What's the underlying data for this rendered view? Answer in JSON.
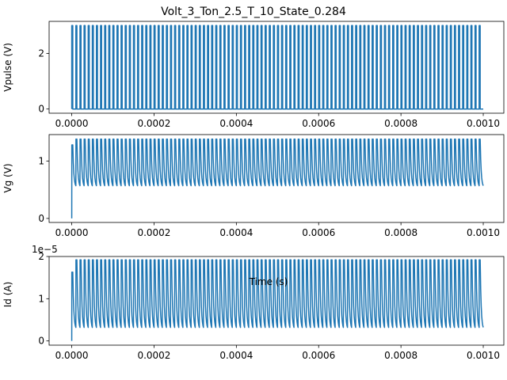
{
  "chart_data": {
    "title": "Volt_3_Ton_2.5_T_10_State_0.284",
    "type": "line",
    "color": "#1f77b4",
    "shared_x": {
      "xlabel": "Time (s)",
      "xlim": [
        -5.5e-05,
        0.00105
      ],
      "xticks": [
        0.0,
        0.0002,
        0.0004,
        0.0006,
        0.0008,
        0.001
      ],
      "xtick_labels": [
        "0.0000",
        "0.0002",
        "0.0004",
        "0.0006",
        "0.0008",
        "0.0010"
      ]
    },
    "pulse": {
      "period": 1e-05,
      "on_time": 2.5e-06,
      "count": 100
    },
    "subplots": [
      {
        "ylabel": "Vpulse (V)",
        "ylim": [
          -0.15,
          3.15
        ],
        "yticks": [
          0,
          2
        ],
        "ytick_labels": [
          "0",
          "2"
        ],
        "offset_text": "",
        "low": 0,
        "high": 3
      },
      {
        "ylabel": "Vg (V)",
        "ylim": [
          -0.07,
          1.46
        ],
        "yticks": [
          0,
          1
        ],
        "ytick_labels": [
          "0",
          "1"
        ],
        "offset_text": "",
        "start": 0,
        "first_peak": 1.28,
        "peak": 1.38,
        "trough": 0.57
      },
      {
        "ylabel": "Id (A)",
        "ylim": [
          -0.1,
          2.0
        ],
        "yticks": [
          0,
          1,
          2
        ],
        "ytick_labels": [
          "0",
          "1",
          "2"
        ],
        "offset_text": "1e−5",
        "start": 0,
        "first_peak": 1.63,
        "peak": 1.92,
        "trough": 0.32
      }
    ]
  }
}
